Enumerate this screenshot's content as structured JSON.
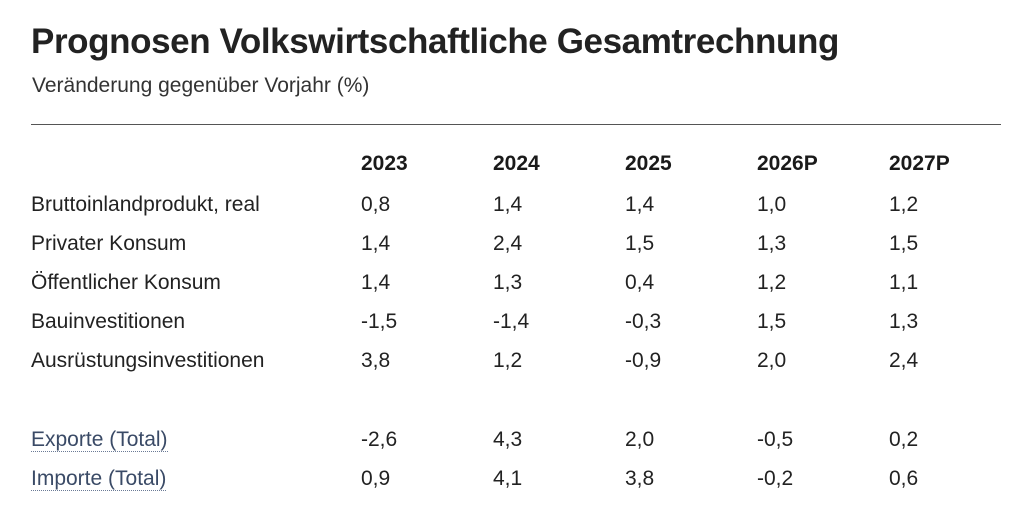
{
  "title": "Prognosen Volkswirtschaftliche Gesamtrechnung",
  "subtitle": "Veränderung gegenüber Vorjahr (%)",
  "chart_data": {
    "type": "table",
    "title": "Prognosen Volkswirtschaftliche Gesamtrechnung",
    "subtitle": "Veränderung gegenüber Vorjahr (%)",
    "columns": [
      "2023",
      "2024",
      "2025",
      "2026P",
      "2027P"
    ],
    "rows": [
      {
        "label": "Bruttoinlandprodukt, real",
        "values": [
          "0,8",
          "1,4",
          "1,4",
          "1,0",
          "1,2"
        ]
      },
      {
        "label": "Privater Konsum",
        "values": [
          "1,4",
          "2,4",
          "1,5",
          "1,3",
          "1,5"
        ]
      },
      {
        "label": "Öffentlicher Konsum",
        "values": [
          "1,4",
          "1,3",
          "0,4",
          "1,2",
          "1,1"
        ]
      },
      {
        "label": "Bauinvestitionen",
        "values": [
          "-1,5",
          "-1,4",
          "-0,3",
          "1,5",
          "1,3"
        ]
      },
      {
        "label": "Ausrüstungsinvestitionen",
        "values": [
          "3,8",
          "1,2",
          "-0,9",
          "2,0",
          "2,4"
        ]
      },
      {
        "label": "Exporte (Total)",
        "values": [
          "-2,6",
          "4,3",
          "2,0",
          "-0,5",
          "0,2"
        ]
      },
      {
        "label": "Importe (Total)",
        "values": [
          "0,9",
          "4,1",
          "3,8",
          "-0,2",
          "0,6"
        ]
      }
    ]
  }
}
